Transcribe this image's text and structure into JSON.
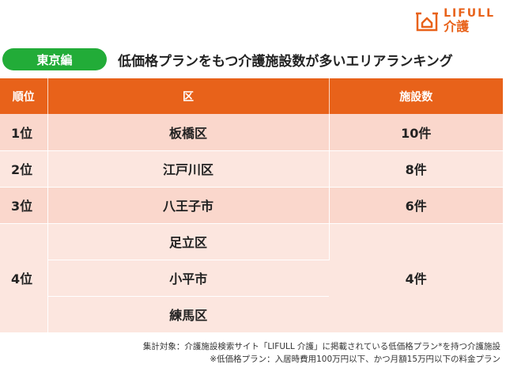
{
  "brand": {
    "name_en": "LIFULL",
    "name_jp": "介護",
    "color": "#e8621a"
  },
  "region_badge": "東京編",
  "headline": "低価格プランをもつ介護施設数が多いエリアランキング",
  "table": {
    "headers": {
      "rank": "順位",
      "area": "区",
      "count": "施設数"
    },
    "rows": [
      {
        "rank": "1位",
        "area": "板橋区",
        "count": "10件"
      },
      {
        "rank": "2位",
        "area": "江戸川区",
        "count": "8件"
      },
      {
        "rank": "3位",
        "area": "八王子市",
        "count": "6件"
      },
      {
        "rank": "4位",
        "areas": [
          "足立区",
          "小平市",
          "練馬区"
        ],
        "count": "4件"
      }
    ]
  },
  "notes": {
    "line1": "集計対象：介護施設検索サイト「LIFULL 介護」に掲載されている低価格プラン*を持つ介護施設",
    "line2": "※低価格プラン：入居時費用100万円以下、かつ月額15万円以下の料金プラン"
  },
  "colors": {
    "header_bg": "#e8621a",
    "badge_bg": "#22ac38",
    "row_dark": "#fad7cc",
    "row_light": "#fce6df"
  }
}
